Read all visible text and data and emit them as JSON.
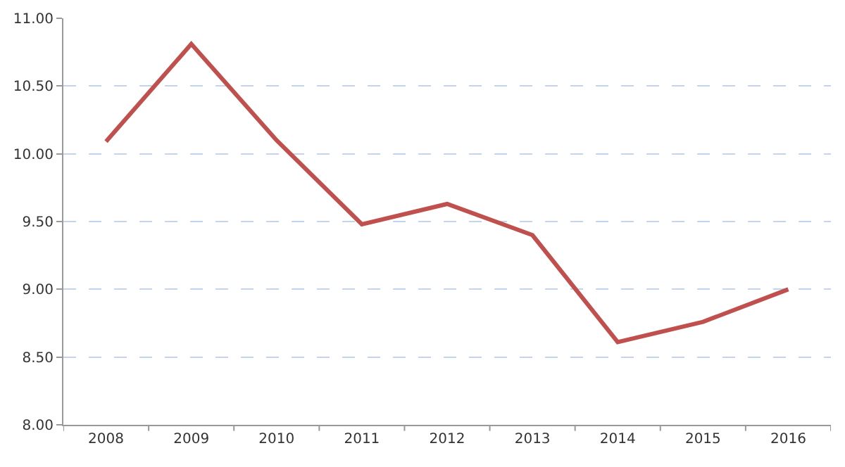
{
  "chart_data": {
    "type": "line",
    "categories": [
      "2008",
      "2009",
      "2010",
      "2011",
      "2012",
      "2013",
      "2014",
      "2015",
      "2016"
    ],
    "series": [
      {
        "color": "#c0504d",
        "values": [
          10.09,
          10.81,
          10.1,
          9.48,
          9.63,
          9.4,
          8.61,
          8.76,
          9.0
        ]
      }
    ],
    "ylim": [
      8,
      11
    ],
    "yticks": [
      {
        "value": 8,
        "label": "8.00"
      },
      {
        "value": 8.5,
        "label": "8.50"
      },
      {
        "value": 9,
        "label": "9.00"
      },
      {
        "value": 9.5,
        "label": "9.50"
      },
      {
        "value": 10,
        "label": "10.00"
      },
      {
        "value": 10.5,
        "label": "10.50"
      },
      {
        "value": 11,
        "label": "11.00"
      }
    ],
    "grid": "y",
    "legend": false,
    "marker": "none",
    "line_style": "solid"
  }
}
